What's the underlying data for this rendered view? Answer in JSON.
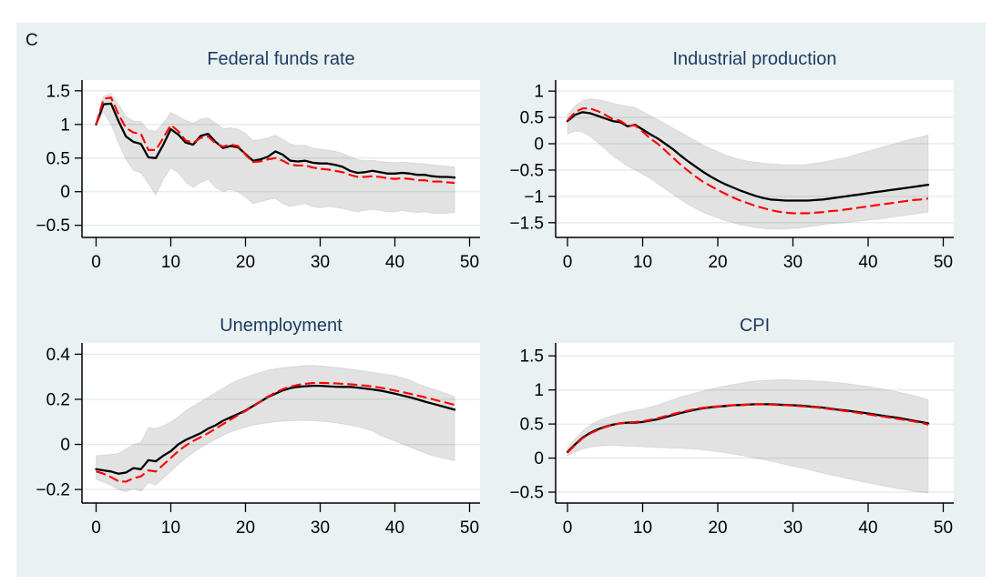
{
  "figure": {
    "panel_label": "C"
  },
  "style": {
    "background": "#e9f1f2",
    "plot_background": "#ffffff",
    "grid_color": "#dfecee",
    "axis_color": "#000000",
    "tick_label_color": "#000000",
    "title_color": "#1f3a5f",
    "irf_line_color": "#000000",
    "counterfactual_line_color": "#ff0000",
    "band_fill": "#e2e2e2"
  },
  "chart_data": [
    {
      "type": "line",
      "title": "Federal funds rate",
      "x_start": 0,
      "x_step": 1,
      "xticks": [
        0,
        10,
        20,
        30,
        40,
        50
      ],
      "xtick_labels": [
        "0",
        "10",
        "20",
        "30",
        "40",
        "50"
      ],
      "yticks": [
        1.5,
        1,
        0.5,
        0,
        -0.5
      ],
      "ytick_labels": [
        "1.5",
        "1",
        "0.5",
        "0",
        "−0.5"
      ],
      "ylim": [
        -0.68,
        1.66
      ],
      "xlim": [
        -1.9,
        51.4
      ],
      "grid": "horizontal",
      "legend": "none",
      "series": [
        {
          "label": "solid-black",
          "values": [
            1.0,
            1.3,
            1.31,
            1.05,
            0.82,
            0.74,
            0.71,
            0.51,
            0.5,
            0.7,
            0.93,
            0.85,
            0.73,
            0.7,
            0.83,
            0.86,
            0.74,
            0.65,
            0.68,
            0.66,
            0.56,
            0.46,
            0.48,
            0.52,
            0.6,
            0.55,
            0.46,
            0.45,
            0.46,
            0.43,
            0.42,
            0.42,
            0.4,
            0.37,
            0.31,
            0.28,
            0.29,
            0.31,
            0.29,
            0.27,
            0.27,
            0.28,
            0.27,
            0.25,
            0.25,
            0.23,
            0.22,
            0.22,
            0.21
          ]
        },
        {
          "label": "dashed-red",
          "values": [
            1.0,
            1.38,
            1.4,
            1.15,
            0.95,
            0.88,
            0.86,
            0.62,
            0.62,
            0.8,
            0.99,
            0.9,
            0.76,
            0.73,
            0.8,
            0.82,
            0.72,
            0.67,
            0.7,
            0.68,
            0.55,
            0.44,
            0.45,
            0.48,
            0.5,
            0.46,
            0.4,
            0.39,
            0.39,
            0.36,
            0.34,
            0.33,
            0.31,
            0.29,
            0.25,
            0.22,
            0.22,
            0.23,
            0.22,
            0.2,
            0.19,
            0.2,
            0.19,
            0.17,
            0.17,
            0.15,
            0.15,
            0.14,
            0.13
          ]
        }
      ],
      "band": {
        "upper": [
          1.0,
          1.42,
          1.46,
          1.3,
          1.12,
          1.05,
          1.04,
          0.92,
          0.9,
          1.02,
          1.18,
          1.12,
          1.06,
          1.02,
          1.08,
          1.1,
          1.02,
          0.94,
          0.95,
          0.93,
          0.87,
          0.76,
          0.78,
          0.8,
          0.84,
          0.78,
          0.71,
          0.69,
          0.69,
          0.65,
          0.63,
          0.62,
          0.6,
          0.57,
          0.52,
          0.48,
          0.46,
          0.47,
          0.45,
          0.44,
          0.43,
          0.44,
          0.43,
          0.42,
          0.42,
          0.4,
          0.39,
          0.38,
          0.37
        ],
        "lower": [
          1.0,
          1.18,
          1.0,
          0.72,
          0.48,
          0.32,
          0.28,
          0.12,
          -0.05,
          0.18,
          0.35,
          0.28,
          0.14,
          0.06,
          0.14,
          0.18,
          0.06,
          0.0,
          0.03,
          0.0,
          -0.08,
          -0.18,
          -0.15,
          -0.12,
          -0.1,
          -0.18,
          -0.22,
          -0.2,
          -0.18,
          -0.22,
          -0.24,
          -0.22,
          -0.23,
          -0.25,
          -0.28,
          -0.3,
          -0.28,
          -0.26,
          -0.28,
          -0.3,
          -0.3,
          -0.28,
          -0.3,
          -0.31,
          -0.3,
          -0.32,
          -0.32,
          -0.32,
          -0.31
        ]
      }
    },
    {
      "type": "line",
      "title": "Industrial production",
      "x_start": 0,
      "x_step": 1,
      "xticks": [
        0,
        10,
        20,
        30,
        40,
        50
      ],
      "xtick_labels": [
        "0",
        "10",
        "20",
        "30",
        "40",
        "50"
      ],
      "yticks": [
        1,
        0.5,
        0,
        -0.5,
        -1,
        -1.5
      ],
      "ytick_labels": [
        "1",
        "0.5",
        "0",
        "−0.5",
        "−1",
        "−1.5"
      ],
      "ylim": [
        -1.78,
        1.21
      ],
      "xlim": [
        -1.9,
        51.4
      ],
      "grid": "horizontal",
      "legend": "none",
      "series": [
        {
          "label": "solid-black",
          "values": [
            0.43,
            0.55,
            0.6,
            0.58,
            0.53,
            0.48,
            0.43,
            0.41,
            0.33,
            0.36,
            0.27,
            0.18,
            0.1,
            0.0,
            -0.1,
            -0.22,
            -0.33,
            -0.43,
            -0.53,
            -0.62,
            -0.7,
            -0.77,
            -0.83,
            -0.89,
            -0.94,
            -0.99,
            -1.03,
            -1.06,
            -1.07,
            -1.08,
            -1.08,
            -1.08,
            -1.08,
            -1.07,
            -1.06,
            -1.04,
            -1.02,
            -1.0,
            -0.98,
            -0.96,
            -0.94,
            -0.92,
            -0.9,
            -0.88,
            -0.86,
            -0.84,
            -0.82,
            -0.8,
            -0.78
          ]
        },
        {
          "label": "dashed-red",
          "values": [
            0.44,
            0.6,
            0.67,
            0.67,
            0.62,
            0.55,
            0.47,
            0.44,
            0.34,
            0.35,
            0.23,
            0.1,
            0.0,
            -0.13,
            -0.26,
            -0.39,
            -0.51,
            -0.62,
            -0.72,
            -0.8,
            -0.88,
            -0.95,
            -1.02,
            -1.08,
            -1.13,
            -1.18,
            -1.22,
            -1.26,
            -1.29,
            -1.31,
            -1.32,
            -1.32,
            -1.32,
            -1.31,
            -1.3,
            -1.28,
            -1.27,
            -1.25,
            -1.23,
            -1.21,
            -1.19,
            -1.17,
            -1.15,
            -1.13,
            -1.11,
            -1.09,
            -1.07,
            -1.06,
            -1.04
          ]
        }
      ],
      "band": {
        "upper": [
          0.55,
          0.72,
          0.82,
          0.85,
          0.84,
          0.81,
          0.77,
          0.74,
          0.71,
          0.69,
          0.61,
          0.53,
          0.46,
          0.38,
          0.3,
          0.22,
          0.14,
          0.06,
          -0.02,
          -0.09,
          -0.15,
          -0.21,
          -0.26,
          -0.3,
          -0.33,
          -0.35,
          -0.37,
          -0.38,
          -0.39,
          -0.4,
          -0.4,
          -0.4,
          -0.39,
          -0.37,
          -0.35,
          -0.32,
          -0.29,
          -0.26,
          -0.22,
          -0.18,
          -0.14,
          -0.1,
          -0.06,
          -0.02,
          0.02,
          0.06,
          0.1,
          0.13,
          0.17
        ],
        "lower": [
          0.18,
          0.24,
          0.22,
          0.14,
          0.02,
          -0.1,
          -0.23,
          -0.33,
          -0.43,
          -0.5,
          -0.58,
          -0.66,
          -0.76,
          -0.86,
          -0.96,
          -1.06,
          -1.15,
          -1.23,
          -1.3,
          -1.36,
          -1.41,
          -1.46,
          -1.5,
          -1.54,
          -1.57,
          -1.59,
          -1.61,
          -1.62,
          -1.62,
          -1.62,
          -1.61,
          -1.6,
          -1.58,
          -1.56,
          -1.54,
          -1.52,
          -1.51,
          -1.5,
          -1.48,
          -1.47,
          -1.45,
          -1.44,
          -1.42,
          -1.4,
          -1.38,
          -1.36,
          -1.34,
          -1.32,
          -1.3
        ]
      }
    },
    {
      "type": "line",
      "title": "Unemployment",
      "x_start": 0,
      "x_step": 1,
      "xticks": [
        0,
        10,
        20,
        30,
        40,
        50
      ],
      "xtick_labels": [
        "0",
        "10",
        "20",
        "30",
        "40",
        "50"
      ],
      "yticks": [
        0.4,
        0.2,
        0,
        -0.2
      ],
      "ytick_labels": [
        "0.4",
        "0.2",
        "0",
        "−0.2"
      ],
      "ylim": [
        -0.26,
        0.45
      ],
      "xlim": [
        -1.9,
        51.4
      ],
      "grid": "horizontal",
      "legend": "none",
      "series": [
        {
          "label": "solid-black",
          "values": [
            -0.11,
            -0.115,
            -0.12,
            -0.13,
            -0.125,
            -0.105,
            -0.11,
            -0.07,
            -0.075,
            -0.05,
            -0.03,
            0.0,
            0.02,
            0.035,
            0.05,
            0.07,
            0.085,
            0.105,
            0.12,
            0.135,
            0.15,
            0.17,
            0.19,
            0.21,
            0.225,
            0.24,
            0.25,
            0.255,
            0.258,
            0.26,
            0.26,
            0.258,
            0.256,
            0.255,
            0.255,
            0.252,
            0.248,
            0.244,
            0.239,
            0.232,
            0.225,
            0.217,
            0.209,
            0.2,
            0.19,
            0.181,
            0.172,
            0.163,
            0.154
          ]
        },
        {
          "label": "dashed-red",
          "values": [
            -0.12,
            -0.13,
            -0.145,
            -0.163,
            -0.165,
            -0.15,
            -0.142,
            -0.115,
            -0.12,
            -0.09,
            -0.06,
            -0.03,
            -0.005,
            0.015,
            0.032,
            0.05,
            0.07,
            0.09,
            0.11,
            0.13,
            0.148,
            0.168,
            0.19,
            0.212,
            0.23,
            0.245,
            0.256,
            0.264,
            0.269,
            0.272,
            0.273,
            0.272,
            0.271,
            0.269,
            0.267,
            0.264,
            0.261,
            0.257,
            0.252,
            0.246,
            0.239,
            0.232,
            0.225,
            0.217,
            0.209,
            0.201,
            0.192,
            0.184,
            0.175
          ]
        }
      ],
      "band": {
        "upper": [
          -0.05,
          -0.047,
          -0.044,
          -0.04,
          -0.02,
          0.0,
          0.01,
          0.075,
          0.07,
          0.083,
          0.1,
          0.122,
          0.15,
          0.17,
          0.19,
          0.21,
          0.23,
          0.25,
          0.27,
          0.285,
          0.298,
          0.31,
          0.32,
          0.33,
          0.336,
          0.34,
          0.344,
          0.346,
          0.35,
          0.35,
          0.348,
          0.345,
          0.342,
          0.339,
          0.335,
          0.33,
          0.325,
          0.32,
          0.315,
          0.31,
          0.305,
          0.295,
          0.285,
          0.27,
          0.258,
          0.247,
          0.236,
          0.224,
          0.212
        ],
        "lower": [
          -0.155,
          -0.167,
          -0.182,
          -0.2,
          -0.21,
          -0.196,
          -0.208,
          -0.17,
          -0.18,
          -0.15,
          -0.12,
          -0.09,
          -0.06,
          -0.038,
          -0.015,
          0.005,
          0.022,
          0.04,
          0.055,
          0.066,
          0.076,
          0.085,
          0.091,
          0.096,
          0.1,
          0.103,
          0.105,
          0.106,
          0.106,
          0.105,
          0.103,
          0.1,
          0.096,
          0.091,
          0.085,
          0.078,
          0.07,
          0.06,
          0.04,
          0.028,
          0.015,
          0.002,
          -0.012,
          -0.025,
          -0.038,
          -0.05,
          -0.058,
          -0.065,
          -0.072
        ]
      }
    },
    {
      "type": "line",
      "title": "CPI",
      "x_start": 0,
      "x_step": 1,
      "xticks": [
        0,
        10,
        20,
        30,
        40,
        50
      ],
      "xtick_labels": [
        "0",
        "10",
        "20",
        "30",
        "40",
        "50"
      ],
      "yticks": [
        1.5,
        1,
        0.5,
        0,
        -0.5
      ],
      "ytick_labels": [
        "1.5",
        "1",
        "0.5",
        "0",
        "−0.5"
      ],
      "ylim": [
        -0.66,
        1.69
      ],
      "xlim": [
        -1.9,
        51.4
      ],
      "grid": "horizontal",
      "legend": "none",
      "series": [
        {
          "label": "solid-black",
          "values": [
            0.09,
            0.2,
            0.3,
            0.37,
            0.42,
            0.46,
            0.49,
            0.51,
            0.52,
            0.52,
            0.53,
            0.55,
            0.57,
            0.6,
            0.63,
            0.66,
            0.685,
            0.71,
            0.73,
            0.745,
            0.755,
            0.765,
            0.775,
            0.78,
            0.785,
            0.79,
            0.79,
            0.79,
            0.785,
            0.78,
            0.775,
            0.77,
            0.76,
            0.75,
            0.74,
            0.725,
            0.71,
            0.7,
            0.685,
            0.67,
            0.655,
            0.638,
            0.62,
            0.605,
            0.59,
            0.57,
            0.55,
            0.53,
            0.51
          ]
        },
        {
          "label": "dashed-red",
          "values": [
            0.08,
            0.19,
            0.29,
            0.36,
            0.41,
            0.455,
            0.487,
            0.51,
            0.525,
            0.53,
            0.54,
            0.562,
            0.585,
            0.615,
            0.645,
            0.672,
            0.697,
            0.72,
            0.738,
            0.75,
            0.76,
            0.77,
            0.776,
            0.78,
            0.784,
            0.787,
            0.787,
            0.785,
            0.78,
            0.775,
            0.77,
            0.762,
            0.754,
            0.744,
            0.732,
            0.718,
            0.704,
            0.69,
            0.675,
            0.658,
            0.642,
            0.625,
            0.608,
            0.592,
            0.575,
            0.558,
            0.54,
            0.52,
            0.49
          ]
        }
      ],
      "band": {
        "upper": [
          0.15,
          0.28,
          0.4,
          0.48,
          0.545,
          0.59,
          0.625,
          0.655,
          0.68,
          0.7,
          0.72,
          0.75,
          0.78,
          0.82,
          0.86,
          0.895,
          0.925,
          0.955,
          0.985,
          1.01,
          1.035,
          1.058,
          1.08,
          1.1,
          1.118,
          1.13,
          1.14,
          1.145,
          1.15,
          1.15,
          1.147,
          1.143,
          1.138,
          1.132,
          1.125,
          1.117,
          1.108,
          1.096,
          1.082,
          1.066,
          1.05,
          1.032,
          1.012,
          0.992,
          0.97,
          0.945,
          0.92,
          0.89,
          0.86
        ],
        "lower": [
          0.03,
          0.09,
          0.13,
          0.16,
          0.175,
          0.185,
          0.185,
          0.18,
          0.175,
          0.17,
          0.165,
          0.16,
          0.155,
          0.15,
          0.147,
          0.143,
          0.138,
          0.13,
          0.12,
          0.108,
          0.095,
          0.078,
          0.06,
          0.04,
          0.02,
          0.0,
          -0.022,
          -0.046,
          -0.07,
          -0.095,
          -0.12,
          -0.145,
          -0.17,
          -0.196,
          -0.222,
          -0.247,
          -0.272,
          -0.296,
          -0.32,
          -0.344,
          -0.366,
          -0.388,
          -0.41,
          -0.43,
          -0.45,
          -0.468,
          -0.485,
          -0.5,
          -0.51
        ]
      }
    }
  ]
}
